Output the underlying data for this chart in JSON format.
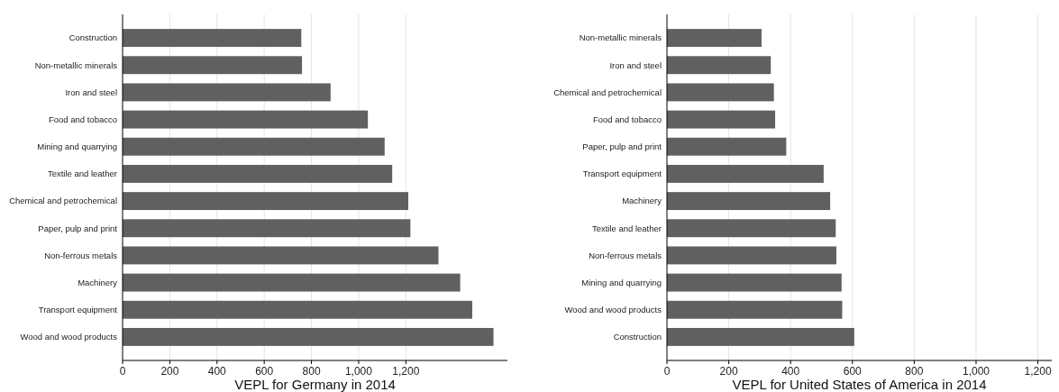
{
  "chart_data": [
    {
      "type": "bar",
      "orientation": "horizontal",
      "xlabel": "VEPL for Germany in 2014",
      "categories": [
        "Construction",
        "Non-metallic minerals",
        "Iron and steel",
        "Food and tobacco",
        "Mining and quarrying",
        "Textile and leather",
        "Chemical and petrochemical",
        "Paper, pulp and print",
        "Non-ferrous metals",
        "Machinery",
        "Transport equipment",
        "Wood and wood products"
      ],
      "values": [
        757,
        760,
        881,
        1039,
        1110,
        1142,
        1210,
        1219,
        1338,
        1430,
        1481,
        1571
      ],
      "color": "#606060",
      "xlim": [
        0,
        1630
      ],
      "xticks": [
        {
          "value": 0,
          "label": "0"
        },
        {
          "value": 200,
          "label": "200"
        },
        {
          "value": 400,
          "label": "400"
        },
        {
          "value": 600,
          "label": "600"
        },
        {
          "value": 800,
          "label": "800"
        },
        {
          "value": 1000,
          "label": "1,000"
        },
        {
          "value": 1200,
          "label": "1,200"
        }
      ],
      "grid": "x"
    },
    {
      "type": "bar",
      "orientation": "horizontal",
      "xlabel": "VEPL for United States of America in 2014",
      "categories": [
        "Non-metallic minerals",
        "Iron and steel",
        "Chemical and petrochemical",
        "Food and tobacco",
        "Paper, pulp and print",
        "Transport equipment",
        "Machinery",
        "Textile and leather",
        "Non-ferrous metals",
        "Mining and quarrying",
        "Wood and wood products",
        "Construction"
      ],
      "values": [
        306,
        336,
        346,
        350,
        386,
        507,
        528,
        546,
        548,
        565,
        567,
        606
      ],
      "color": "#606060",
      "xlim": [
        0,
        1245
      ],
      "xticks": [
        {
          "value": 0,
          "label": "0"
        },
        {
          "value": 200,
          "label": "200"
        },
        {
          "value": 400,
          "label": "400"
        },
        {
          "value": 600,
          "label": "600"
        },
        {
          "value": 800,
          "label": "800"
        },
        {
          "value": 1000,
          "label": "1,000"
        },
        {
          "value": 1200,
          "label": "1,200"
        }
      ],
      "grid": "x"
    }
  ]
}
